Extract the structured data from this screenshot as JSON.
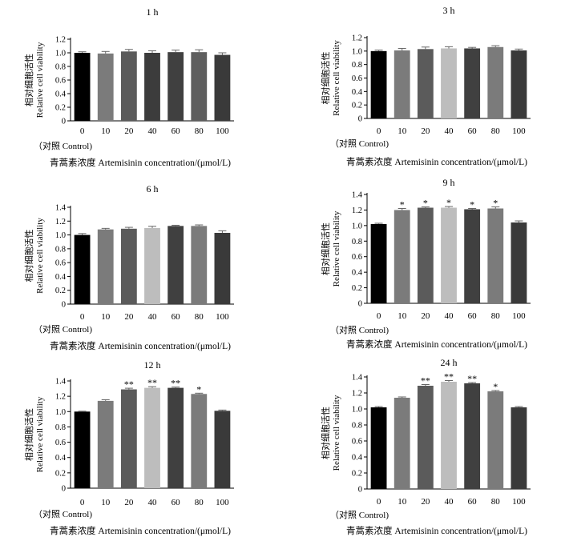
{
  "figure": {
    "ylabel_cn": "相对细胞活性",
    "ylabel_en": "Relative cell viability",
    "control_note": "（对照 Control)",
    "xlabel": "青蒿素浓度 Artemisinin concentration/(μmol/L)"
  },
  "chart_data": [
    {
      "type": "bar",
      "title": "1 h",
      "categories": [
        "0",
        "10",
        "20",
        "40",
        "60",
        "80",
        "100"
      ],
      "values": [
        1.0,
        0.99,
        1.02,
        1.0,
        1.01,
        1.01,
        0.97
      ],
      "errors": [
        0.015,
        0.03,
        0.03,
        0.03,
        0.03,
        0.035,
        0.03
      ],
      "sig": [
        "",
        "",
        "",
        "",
        "",
        "",
        ""
      ],
      "colors": [
        "#000000",
        "#7b7b7b",
        "#5b5b5b",
        "#3c3c3c",
        "#404040",
        "#5e5e5e",
        "#3a3a3a"
      ],
      "ylim": [
        0,
        1.2
      ],
      "yticks": [
        "0",
        "0.2",
        "0.4",
        "0.6",
        "0.8",
        "1.0",
        "1.2"
      ]
    },
    {
      "type": "bar",
      "title": "3 h",
      "categories": [
        "0",
        "10",
        "20",
        "40",
        "60",
        "80",
        "100"
      ],
      "values": [
        1.0,
        1.01,
        1.03,
        1.04,
        1.04,
        1.06,
        1.01
      ],
      "errors": [
        0.015,
        0.03,
        0.03,
        0.025,
        0.015,
        0.02,
        0.02
      ],
      "sig": [
        "",
        "",
        "",
        "",
        "",
        "",
        ""
      ],
      "colors": [
        "#000000",
        "#7b7b7b",
        "#5b5b5b",
        "#bdbdbd",
        "#404040",
        "#7b7b7b",
        "#3a3a3a"
      ],
      "ylim": [
        0,
        1.2
      ],
      "yticks": [
        "0",
        "0.2",
        "0.4",
        "0.6",
        "0.8",
        "1.0",
        "1.2"
      ]
    },
    {
      "type": "bar",
      "title": "6 h",
      "categories": [
        "0",
        "10",
        "20",
        "40",
        "60",
        "80",
        "100"
      ],
      "values": [
        1.0,
        1.08,
        1.09,
        1.1,
        1.13,
        1.13,
        1.03
      ],
      "errors": [
        0.02,
        0.015,
        0.02,
        0.025,
        0.01,
        0.015,
        0.03
      ],
      "sig": [
        "",
        "",
        "",
        "",
        "",
        "",
        ""
      ],
      "colors": [
        "#000000",
        "#7b7b7b",
        "#5b5b5b",
        "#bdbdbd",
        "#404040",
        "#7b7b7b",
        "#3a3a3a"
      ],
      "ylim": [
        0,
        1.4
      ],
      "yticks": [
        "0",
        "0.2",
        "0.4",
        "0.6",
        "0.8",
        "1.0",
        "1.2",
        "1.4"
      ]
    },
    {
      "type": "bar",
      "title": "9 h",
      "categories": [
        "0",
        "10",
        "20",
        "40",
        "60",
        "80",
        "100"
      ],
      "values": [
        1.02,
        1.2,
        1.23,
        1.23,
        1.21,
        1.22,
        1.04
      ],
      "errors": [
        0.01,
        0.02,
        0.01,
        0.015,
        0.01,
        0.02,
        0.02
      ],
      "sig": [
        "",
        "*",
        "*",
        "*",
        "*",
        "*",
        ""
      ],
      "colors": [
        "#000000",
        "#7b7b7b",
        "#5b5b5b",
        "#bdbdbd",
        "#404040",
        "#7b7b7b",
        "#3a3a3a"
      ],
      "ylim": [
        0,
        1.4
      ],
      "yticks": [
        "0",
        "0.2",
        "0.4",
        "0.6",
        "0.8",
        "1.0",
        "1.2",
        "1.4"
      ]
    },
    {
      "type": "bar",
      "title": "12 h",
      "categories": [
        "0",
        "10",
        "20",
        "40",
        "60",
        "80",
        "100"
      ],
      "values": [
        1.0,
        1.14,
        1.29,
        1.31,
        1.31,
        1.23,
        1.01
      ],
      "errors": [
        0.005,
        0.015,
        0.015,
        0.015,
        0.01,
        0.01,
        0.01
      ],
      "sig": [
        "",
        "",
        "**",
        "**",
        "**",
        "*",
        ""
      ],
      "colors": [
        "#000000",
        "#7b7b7b",
        "#5b5b5b",
        "#bdbdbd",
        "#404040",
        "#7b7b7b",
        "#3a3a3a"
      ],
      "ylim": [
        0,
        1.4
      ],
      "yticks": [
        "0",
        "0.2",
        "0.4",
        "0.6",
        "0.8",
        "1.0",
        "1.2",
        "1.4"
      ]
    },
    {
      "type": "bar",
      "title": "24 h",
      "categories": [
        "0",
        "10",
        "20",
        "40",
        "60",
        "80",
        "100"
      ],
      "values": [
        1.02,
        1.14,
        1.29,
        1.34,
        1.32,
        1.22,
        1.02
      ],
      "errors": [
        0.01,
        0.01,
        0.015,
        0.015,
        0.01,
        0.01,
        0.01
      ],
      "sig": [
        "",
        "",
        "**",
        "**",
        "**",
        "*",
        ""
      ],
      "colors": [
        "#000000",
        "#7b7b7b",
        "#5b5b5b",
        "#bdbdbd",
        "#404040",
        "#7b7b7b",
        "#3a3a3a"
      ],
      "ylim": [
        0,
        1.4
      ],
      "yticks": [
        "0",
        "0.2",
        "0.4",
        "0.6",
        "0.8",
        "1.0",
        "1.2",
        "1.4"
      ]
    }
  ]
}
